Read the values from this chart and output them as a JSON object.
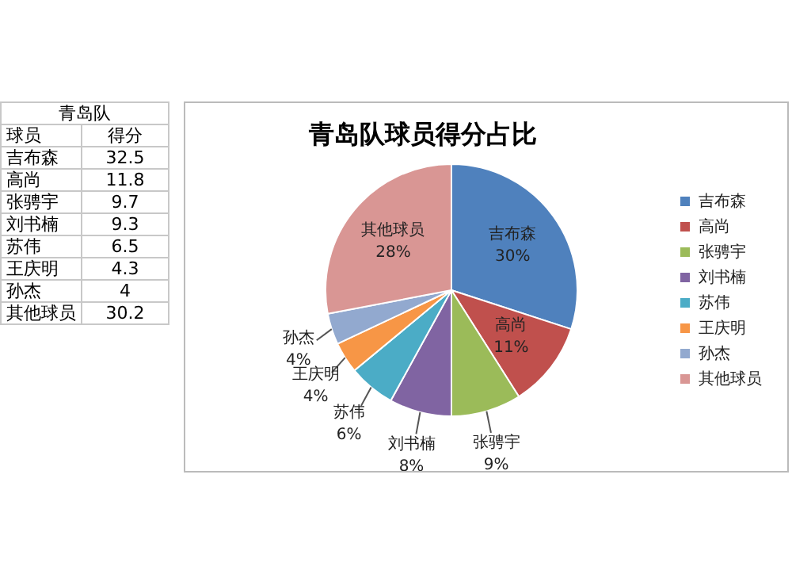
{
  "chart_data": {
    "type": "pie",
    "title": "青岛队球员得分占比",
    "categories": [
      "吉布森",
      "高尚",
      "张骋宇",
      "刘书楠",
      "苏伟",
      "王庆明",
      "孙杰",
      "其他球员"
    ],
    "values": [
      30,
      11,
      9,
      8,
      6,
      4,
      4,
      28
    ],
    "colors": [
      "#4f81bd",
      "#c0504d",
      "#9bbb59",
      "#8064a2",
      "#4bacc6",
      "#f79646",
      "#92a9cf",
      "#d99694"
    ],
    "value_labels": [
      "30%",
      "11%",
      "9%",
      "8%",
      "6%",
      "4%",
      "4%",
      "28%"
    ],
    "legend": "right",
    "annotations": [
      "青岛队",
      "球员",
      "得分",
      "32.5",
      "11.8",
      "9.7",
      "9.3",
      "6.5",
      "4.3",
      "4",
      "30.2"
    ]
  }
}
